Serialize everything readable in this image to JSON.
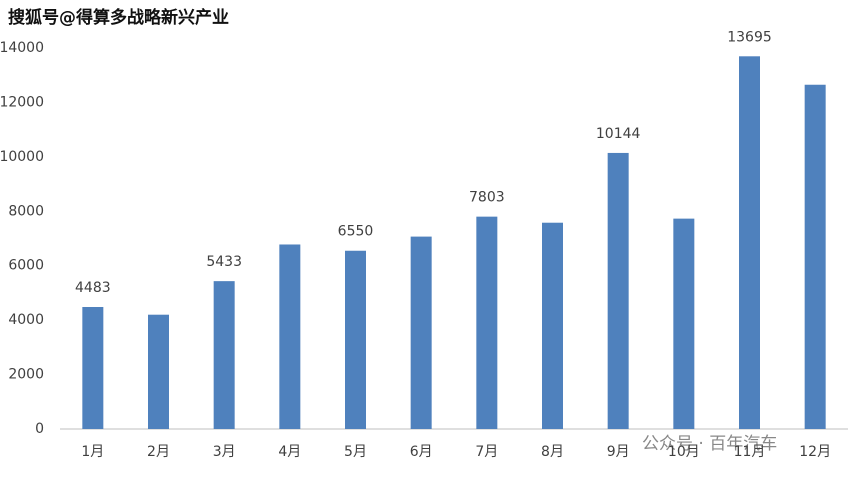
{
  "chart_data": {
    "type": "bar",
    "watermarks": [
      "搜狐号@得算多战略新兴产业",
      "公众号 · 百年汽车"
    ],
    "categories": [
      "1月",
      "2月",
      "3月",
      "4月",
      "5月",
      "6月",
      "7月",
      "8月",
      "9月",
      "10月",
      "11月",
      "12月"
    ],
    "values": [
      4483,
      4200,
      5433,
      6780,
      6550,
      7070,
      7803,
      7580,
      10144,
      7730,
      13695,
      12650
    ],
    "value_labels": [
      "4483",
      null,
      "5433",
      null,
      "6550",
      null,
      "7803",
      null,
      "10144",
      null,
      "13695",
      null
    ],
    "color": "#4f81bd",
    "ylim": [
      0,
      14000
    ],
    "yticks": [
      0,
      2000,
      4000,
      6000,
      8000,
      10000,
      12000,
      14000
    ],
    "grid": false
  }
}
